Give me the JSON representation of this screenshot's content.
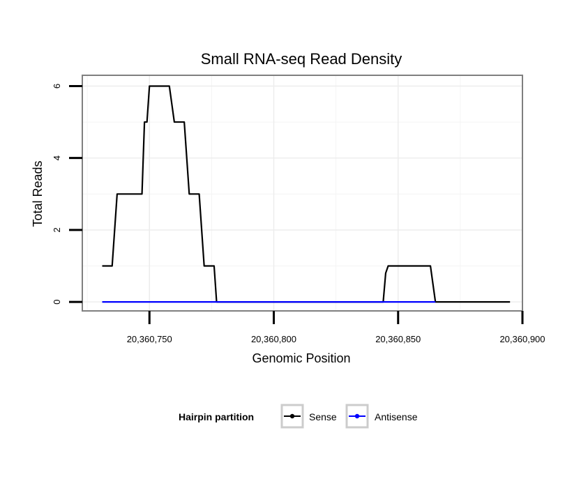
{
  "chart_data": {
    "type": "line",
    "title": "Small RNA-seq Read Density",
    "xlabel": "Genomic Position",
    "ylabel": "Total Reads",
    "xlim": [
      20360723,
      20360900
    ],
    "ylim": [
      -0.25,
      6.3
    ],
    "x_ticks": [
      {
        "value": 20360750,
        "label": "20,360,750"
      },
      {
        "value": 20360800,
        "label": "20,360,800"
      },
      {
        "value": 20360850,
        "label": "20,360,850"
      },
      {
        "value": 20360900,
        "label": "20,360,900"
      }
    ],
    "y_ticks": [
      {
        "value": 0,
        "label": "0"
      },
      {
        "value": 2,
        "label": "2"
      },
      {
        "value": 4,
        "label": "4"
      },
      {
        "value": 6,
        "label": "6"
      }
    ],
    "grid": true,
    "legend": {
      "title": "Hairpin partition",
      "position": "bottom"
    },
    "series": [
      {
        "name": "Sense",
        "color": "#000000",
        "x": [
          20360731,
          20360735,
          20360736,
          20360737,
          20360738,
          20360739,
          20360747,
          20360748,
          20360749,
          20360750,
          20360758,
          20360759,
          20360760,
          20360764,
          20360765,
          20360766,
          20360767,
          20360768,
          20360770,
          20360771,
          20360772,
          20360776,
          20360777,
          20360844,
          20360845,
          20360846,
          20360847,
          20360863,
          20360864,
          20360865,
          20360895
        ],
        "y": [
          1,
          1,
          2,
          3,
          3,
          3,
          3,
          5,
          5,
          6,
          6,
          5.5,
          5,
          5,
          4,
          3,
          3,
          3,
          3,
          2,
          1,
          1,
          0,
          0,
          0.8,
          1,
          1,
          1,
          0.5,
          0,
          0
        ]
      },
      {
        "name": "Antisense",
        "color": "#0000ff",
        "x": [
          20360731,
          20360777,
          20360844,
          20360865
        ],
        "y": [
          0,
          0,
          0,
          0
        ]
      }
    ]
  }
}
